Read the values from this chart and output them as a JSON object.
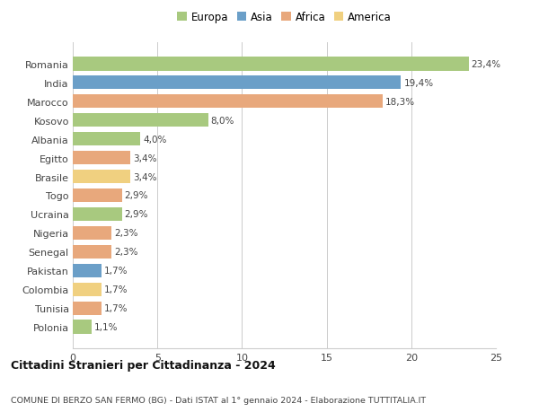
{
  "countries": [
    "Romania",
    "India",
    "Marocco",
    "Kosovo",
    "Albania",
    "Egitto",
    "Brasile",
    "Togo",
    "Ucraina",
    "Nigeria",
    "Senegal",
    "Pakistan",
    "Colombia",
    "Tunisia",
    "Polonia"
  ],
  "values": [
    23.4,
    19.4,
    18.3,
    8.0,
    4.0,
    3.4,
    3.4,
    2.9,
    2.9,
    2.3,
    2.3,
    1.7,
    1.7,
    1.7,
    1.1
  ],
  "labels": [
    "23,4%",
    "19,4%",
    "18,3%",
    "8,0%",
    "4,0%",
    "3,4%",
    "3,4%",
    "2,9%",
    "2,9%",
    "2,3%",
    "2,3%",
    "1,7%",
    "1,7%",
    "1,7%",
    "1,1%"
  ],
  "continents": [
    "Europa",
    "Asia",
    "Africa",
    "Europa",
    "Europa",
    "Africa",
    "America",
    "Africa",
    "Europa",
    "Africa",
    "Africa",
    "Asia",
    "America",
    "Africa",
    "Europa"
  ],
  "colors": {
    "Europa": "#a8c97f",
    "Asia": "#6b9fc8",
    "Africa": "#e8a87c",
    "America": "#f0d080"
  },
  "xlim": [
    0,
    25
  ],
  "xticks": [
    0,
    5,
    10,
    15,
    20,
    25
  ],
  "title": "Cittadini Stranieri per Cittadinanza - 2024",
  "subtitle": "COMUNE DI BERZO SAN FERMO (BG) - Dati ISTAT al 1° gennaio 2024 - Elaborazione TUTTITALIA.IT",
  "background_color": "#ffffff",
  "grid_color": "#cccccc",
  "bar_height": 0.75,
  "legend_order": [
    "Europa",
    "Asia",
    "Africa",
    "America"
  ]
}
